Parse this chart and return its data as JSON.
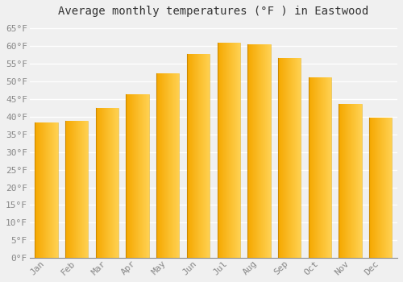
{
  "title": "Average monthly temperatures (°F ) in Eastwood",
  "months": [
    "Jan",
    "Feb",
    "Mar",
    "Apr",
    "May",
    "Jun",
    "Jul",
    "Aug",
    "Sep",
    "Oct",
    "Nov",
    "Dec"
  ],
  "values": [
    38.3,
    38.7,
    42.4,
    46.4,
    52.3,
    57.7,
    61.0,
    60.5,
    56.5,
    51.0,
    43.7,
    39.8
  ],
  "bar_color_left": "#F5A800",
  "bar_color_right": "#FFD050",
  "yticks": [
    0,
    5,
    10,
    15,
    20,
    25,
    30,
    35,
    40,
    45,
    50,
    55,
    60,
    65
  ],
  "ytick_labels": [
    "0°F",
    "5°F",
    "10°F",
    "15°F",
    "20°F",
    "25°F",
    "30°F",
    "35°F",
    "40°F",
    "45°F",
    "50°F",
    "55°F",
    "60°F",
    "65°F"
  ],
  "ylim": [
    0,
    67
  ],
  "background_color": "#f0f0f0",
  "grid_color": "#ffffff",
  "title_fontsize": 10,
  "tick_fontsize": 8,
  "font_family": "monospace"
}
